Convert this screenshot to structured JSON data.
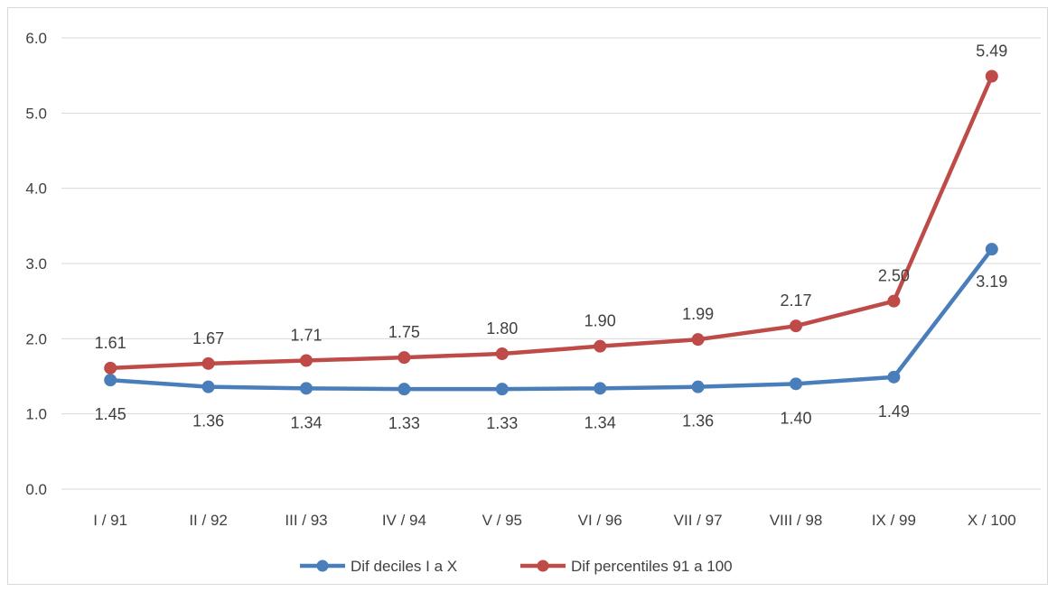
{
  "chart_data": {
    "type": "line",
    "title": "",
    "xlabel": "",
    "ylabel": "",
    "ylim": [
      0,
      6
    ],
    "y_ticks": [
      "0.0",
      "1.0",
      "2.0",
      "3.0",
      "4.0",
      "5.0",
      "6.0"
    ],
    "y_tick_values": [
      0,
      1,
      2,
      3,
      4,
      5,
      6
    ],
    "grid": true,
    "legend_position": "bottom",
    "categories": [
      "I / 91",
      "II / 92",
      "III / 93",
      "IV / 94",
      "V / 95",
      "VI / 96",
      "VII / 97",
      "VIII / 98",
      "IX / 99",
      "X / 100"
    ],
    "series": [
      {
        "name": "Dif deciles I a X",
        "color": "#4a7ebb",
        "values": [
          1.45,
          1.36,
          1.34,
          1.33,
          1.33,
          1.34,
          1.36,
          1.4,
          1.49,
          3.19
        ],
        "labels": [
          "1.45",
          "1.36",
          "1.34",
          "1.33",
          "1.33",
          "1.34",
          "1.36",
          "1.40",
          "1.49",
          "3.19"
        ],
        "label_position": "below"
      },
      {
        "name": "Dif percentiles 91 a 100",
        "color": "#be4b48",
        "values": [
          1.61,
          1.67,
          1.71,
          1.75,
          1.8,
          1.9,
          1.99,
          2.17,
          2.5,
          5.49
        ],
        "labels": [
          "1.61",
          "1.67",
          "1.71",
          "1.75",
          "1.80",
          "1.90",
          "1.99",
          "2.17",
          "2.50",
          "5.49"
        ],
        "label_position": "above"
      }
    ]
  }
}
